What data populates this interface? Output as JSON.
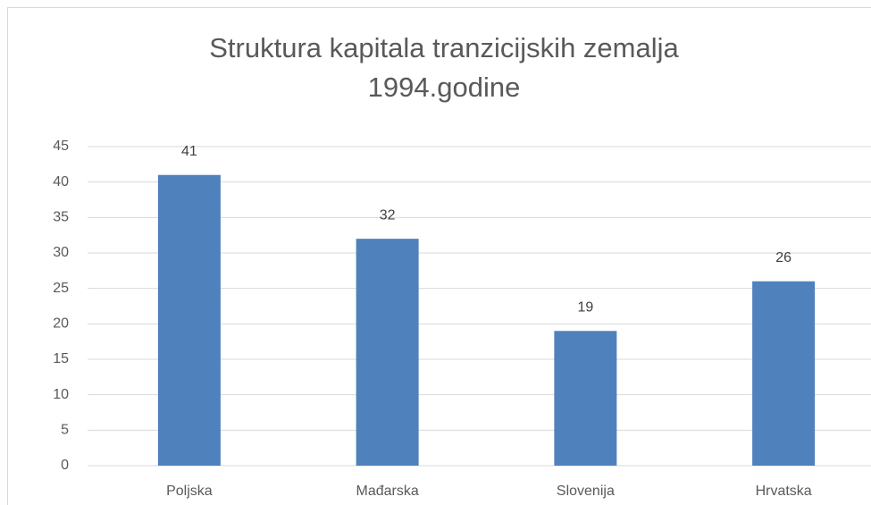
{
  "chart_data": {
    "type": "bar",
    "title": [
      "Struktura kapitala tranzicijskih zemalja",
      "1994.godine"
    ],
    "categories": [
      "Poljska",
      "Mađarska",
      "Slovenija",
      "Hrvatska"
    ],
    "values": [
      41,
      32,
      19,
      26
    ],
    "color": "#4f81bd",
    "ylim": [
      0,
      45
    ],
    "yticks": [
      0,
      5,
      10,
      15,
      20,
      25,
      30,
      35,
      40,
      45
    ],
    "grid": true
  }
}
